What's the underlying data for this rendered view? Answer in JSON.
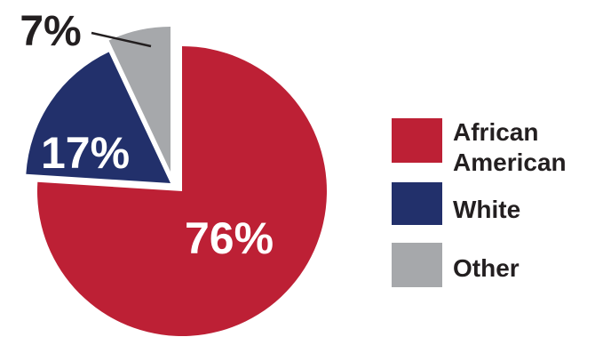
{
  "chart_data": {
    "type": "pie",
    "slices": [
      {
        "label": "African American",
        "value": 76,
        "value_label": "76%",
        "color": "#bd2035"
      },
      {
        "label": "White",
        "value": 17,
        "value_label": "17%",
        "color": "#22306b"
      },
      {
        "label": "Other",
        "value": 7,
        "value_label": "7%",
        "color": "#a6a8ab"
      }
    ],
    "legend": {
      "position": "right",
      "entries": [
        {
          "lines": [
            "African",
            "American"
          ],
          "color": "#bd2035"
        },
        {
          "lines": [
            "White"
          ],
          "color": "#22306b"
        },
        {
          "lines": [
            "Other"
          ],
          "color": "#a6a8ab"
        }
      ]
    },
    "exploded": true
  }
}
